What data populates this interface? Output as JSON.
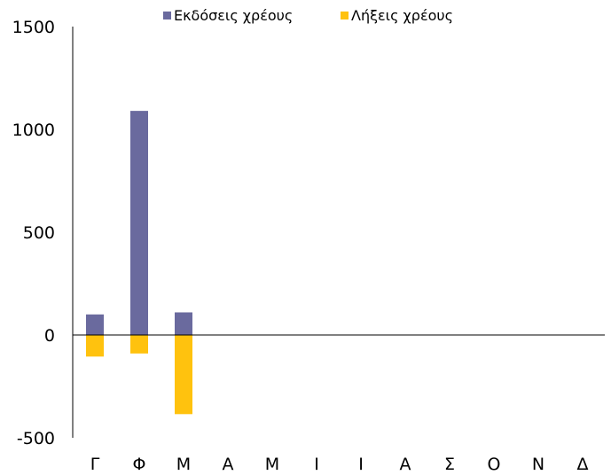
{
  "chart_data": {
    "type": "bar",
    "categories": [
      "Γ",
      "Φ",
      "Μ",
      "Α",
      "Μ",
      "Ι",
      "Ι",
      "Α",
      "Σ",
      "Ο",
      "Ν",
      "Δ"
    ],
    "series": [
      {
        "name": "Εκδόσεις χρέους",
        "color": "#6A6A9E",
        "values": [
          100,
          1090,
          110,
          null,
          null,
          null,
          null,
          null,
          null,
          null,
          null,
          null
        ]
      },
      {
        "name": "Λήξεις χρέους",
        "color": "#FFC20E",
        "values": [
          -105,
          -90,
          -385,
          null,
          null,
          null,
          null,
          null,
          null,
          null,
          null,
          null
        ]
      }
    ],
    "y_ticks": [
      "1500",
      "1000",
      "500",
      "0",
      "-500"
    ],
    "ylim": [
      -500,
      1500
    ],
    "legend_position": "top",
    "grid": false
  }
}
